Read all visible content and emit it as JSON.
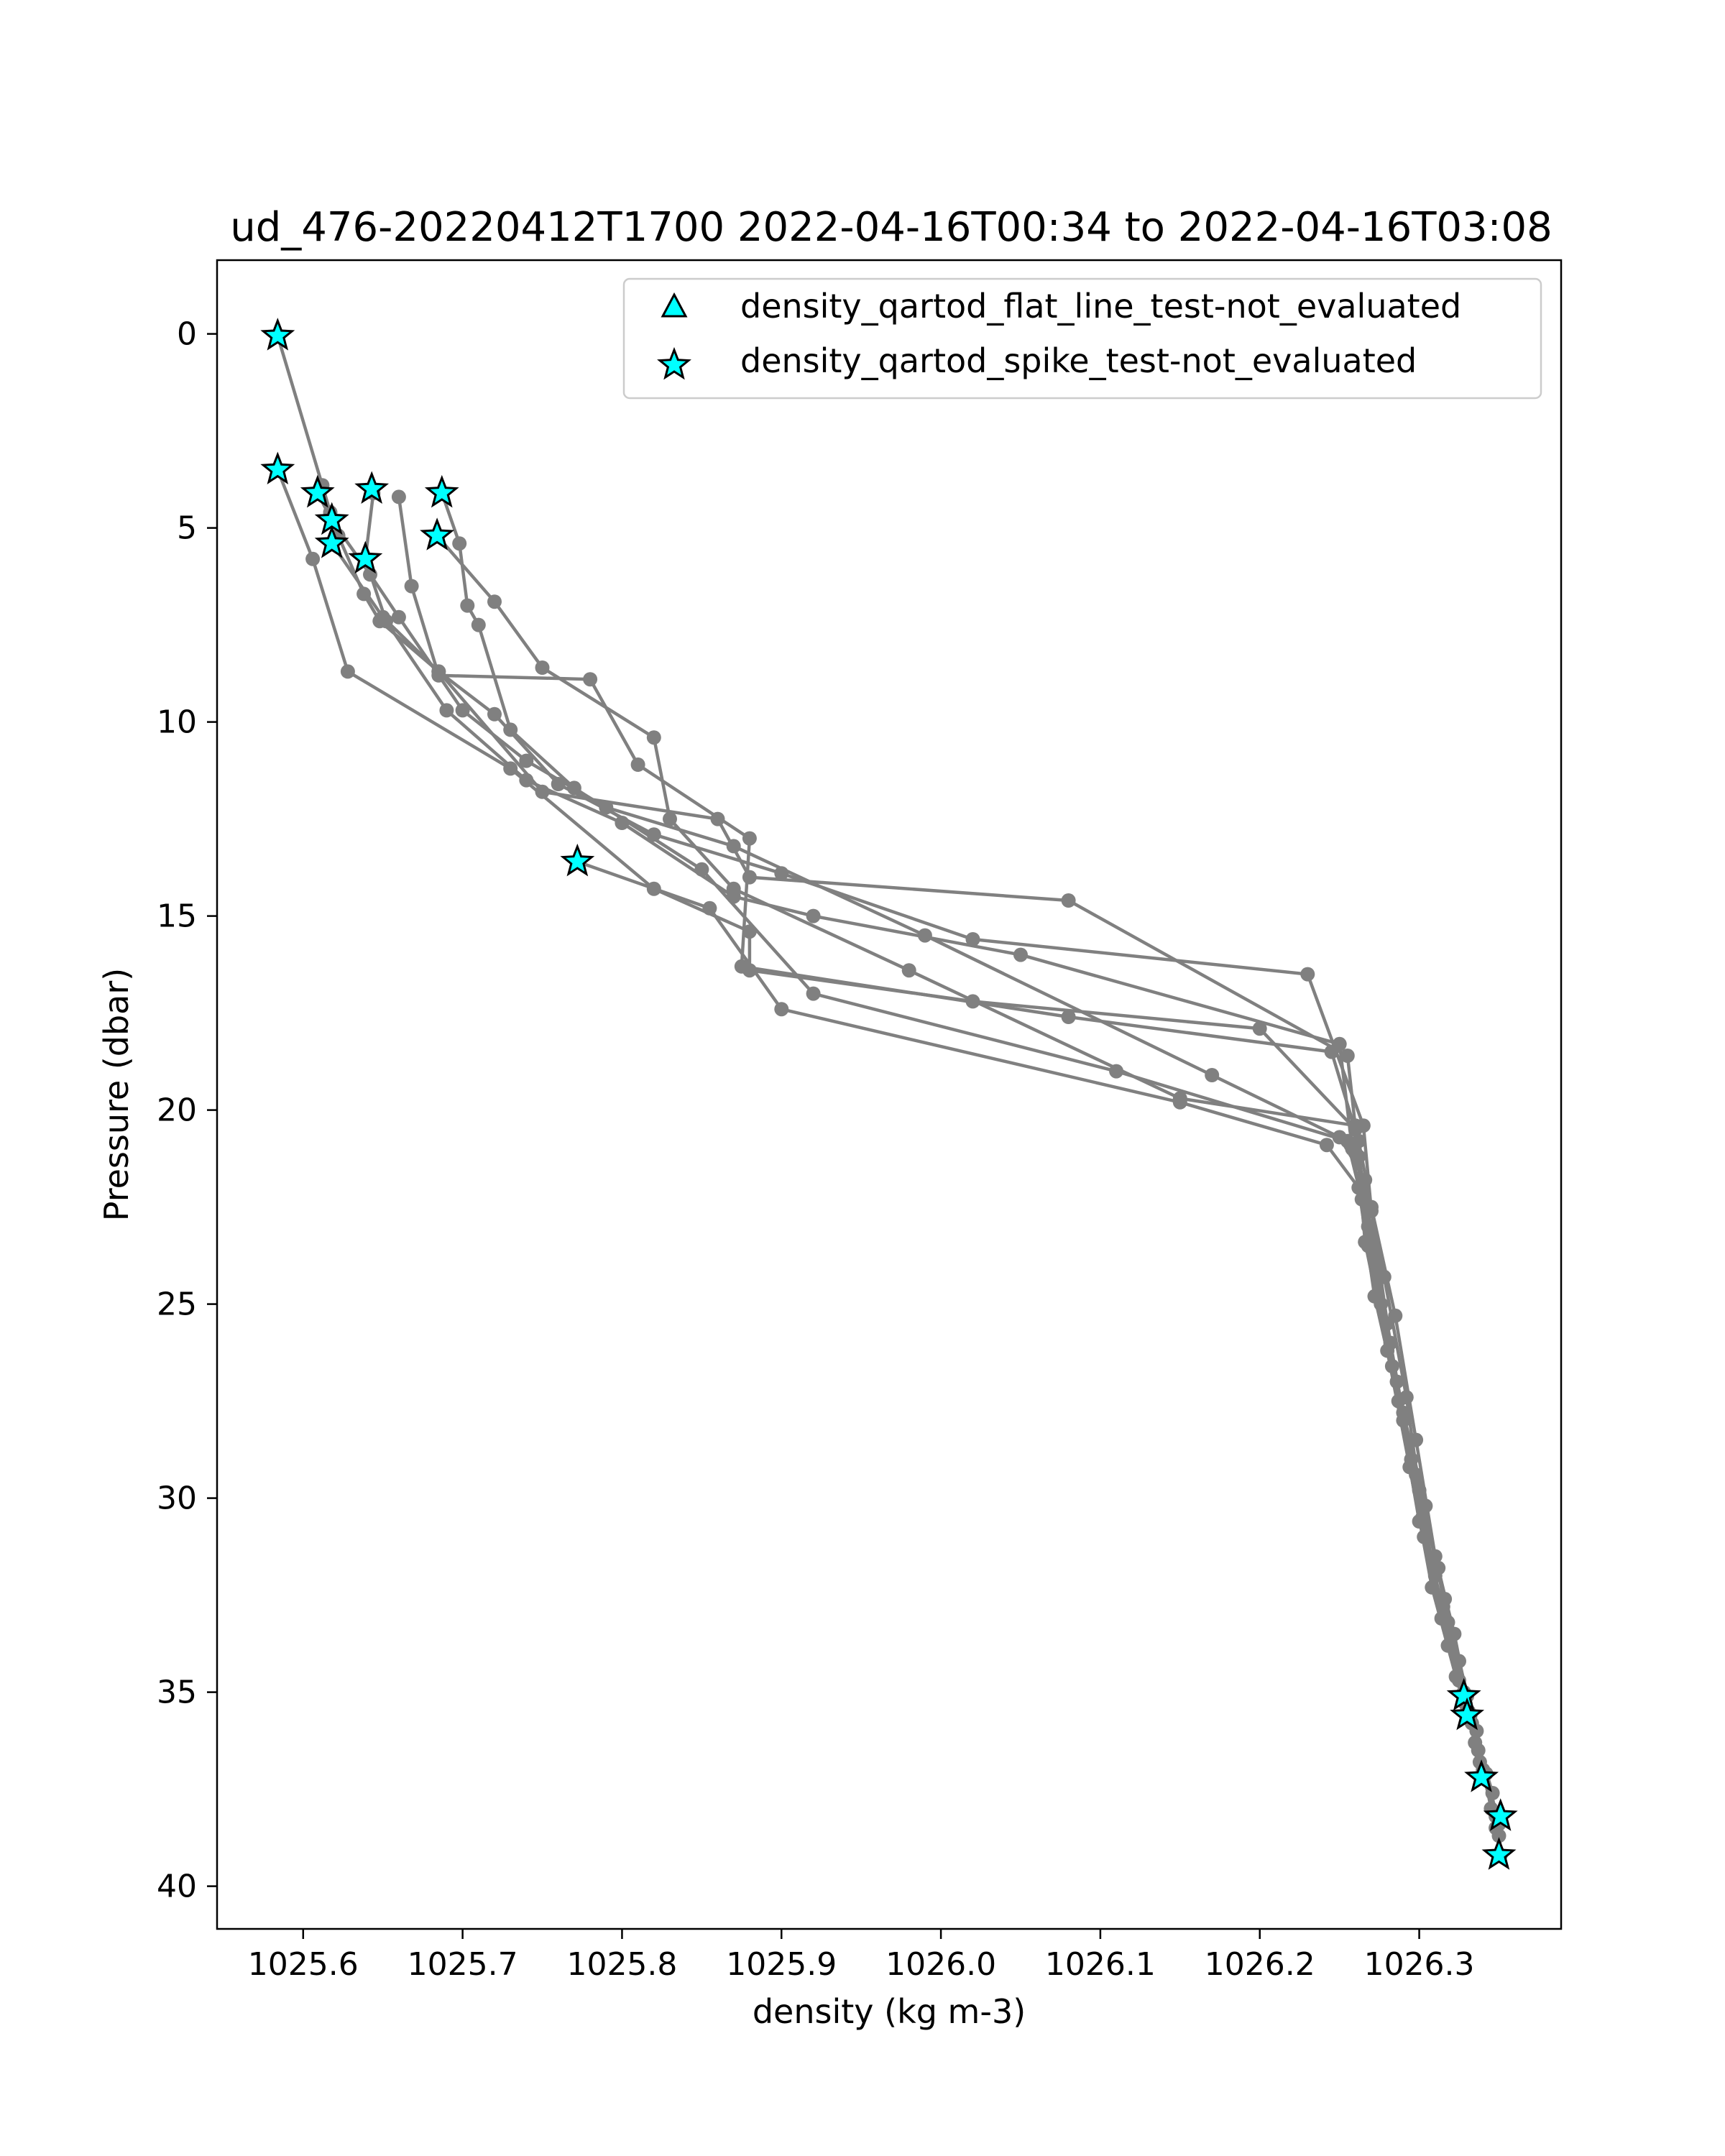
{
  "chart_data": {
    "type": "scatter",
    "title": "ud_476-20220412T1700 2022-04-16T00:34 to 2022-04-16T03:08",
    "xlabel": "density (kg m-3)",
    "ylabel": "Pressure (dbar)",
    "xlim": [
      1025.546,
      1026.389
    ],
    "ylim": [
      41.1,
      -1.9
    ],
    "y_inverted": true,
    "grid": false,
    "x_ticks": [
      {
        "value": 1025.6,
        "label": "1025.6"
      },
      {
        "value": 1025.7,
        "label": "1025.7"
      },
      {
        "value": 1025.8,
        "label": "1025.8"
      },
      {
        "value": 1025.9,
        "label": "1025.9"
      },
      {
        "value": 1026.0,
        "label": "1026.0"
      },
      {
        "value": 1026.1,
        "label": "1026.1"
      },
      {
        "value": 1026.2,
        "label": "1026.2"
      },
      {
        "value": 1026.3,
        "label": "1026.3"
      }
    ],
    "y_ticks": [
      {
        "value": 0,
        "label": "0"
      },
      {
        "value": 5,
        "label": "5"
      },
      {
        "value": 10,
        "label": "10"
      },
      {
        "value": 15,
        "label": "15"
      },
      {
        "value": 20,
        "label": "20"
      },
      {
        "value": 25,
        "label": "25"
      },
      {
        "value": 30,
        "label": "30"
      },
      {
        "value": 35,
        "label": "35"
      },
      {
        "value": 40,
        "label": "40"
      }
    ],
    "profile_color": "#808080",
    "profiles": [
      {
        "points": [
          [
            1025.584,
            0.05
          ],
          [
            1025.612,
            3.9
          ],
          [
            1025.617,
            4.6
          ],
          [
            1025.622,
            5.2
          ],
          [
            1025.638,
            6.7
          ],
          [
            1025.648,
            7.4
          ],
          [
            1025.685,
            8.7
          ],
          [
            1025.72,
            9.8
          ],
          [
            1025.76,
            11.6
          ],
          [
            1025.82,
            12.9
          ],
          [
            1025.9,
            13.9
          ],
          [
            1026.02,
            15.6
          ],
          [
            1026.23,
            16.5
          ],
          [
            1026.265,
            20.4
          ],
          [
            1026.27,
            22.6
          ],
          [
            1026.28,
            25.5
          ],
          [
            1026.29,
            28.0
          ],
          [
            1026.303,
            31.0
          ],
          [
            1026.318,
            33.8
          ],
          [
            1026.332,
            35.6
          ],
          [
            1026.342,
            37.1
          ],
          [
            1026.35,
            38.4
          ],
          [
            1026.351,
            39.2
          ]
        ]
      },
      {
        "points": [
          [
            1025.584,
            3.5
          ],
          [
            1025.606,
            5.8
          ],
          [
            1025.628,
            8.7
          ],
          [
            1025.73,
            11.2
          ],
          [
            1025.82,
            14.3
          ],
          [
            1025.88,
            15.4
          ],
          [
            1025.88,
            16.4
          ],
          [
            1026.02,
            17.2
          ],
          [
            1026.2,
            17.9
          ],
          [
            1026.26,
            20.5
          ],
          [
            1026.268,
            23.0
          ],
          [
            1026.282,
            26.0
          ],
          [
            1026.295,
            29.0
          ],
          [
            1026.31,
            32.0
          ],
          [
            1026.325,
            34.7
          ],
          [
            1026.335,
            36.3
          ],
          [
            1026.348,
            38.2
          ]
        ]
      },
      {
        "points": [
          [
            1025.609,
            4.1
          ],
          [
            1025.618,
            4.8
          ],
          [
            1025.642,
            6.2
          ],
          [
            1025.66,
            7.3
          ],
          [
            1025.7,
            9.7
          ],
          [
            1025.74,
            11.0
          ],
          [
            1025.79,
            12.2
          ],
          [
            1025.87,
            13.2
          ],
          [
            1025.99,
            15.5
          ],
          [
            1026.17,
            19.1
          ],
          [
            1026.25,
            20.7
          ],
          [
            1026.266,
            21.8
          ],
          [
            1026.278,
            24.3
          ],
          [
            1026.292,
            27.4
          ],
          [
            1026.3,
            29.8
          ],
          [
            1026.316,
            32.6
          ],
          [
            1026.33,
            35.1
          ],
          [
            1026.34,
            37.0
          ],
          [
            1026.35,
            38.7
          ]
        ]
      },
      {
        "points": [
          [
            1025.618,
            5.4
          ],
          [
            1025.65,
            7.3
          ],
          [
            1025.685,
            8.7
          ],
          [
            1025.75,
            11.8
          ],
          [
            1025.86,
            12.5
          ],
          [
            1025.88,
            14.0
          ],
          [
            1026.08,
            14.6
          ],
          [
            1026.255,
            18.6
          ],
          [
            1026.262,
            21.2
          ],
          [
            1026.274,
            24.1
          ],
          [
            1026.286,
            27.0
          ],
          [
            1026.302,
            30.5
          ],
          [
            1026.314,
            33.1
          ],
          [
            1026.329,
            35.3
          ],
          [
            1026.338,
            36.8
          ]
        ]
      },
      {
        "points": [
          [
            1025.643,
            4.0
          ],
          [
            1025.644,
            4.1
          ],
          [
            1025.639,
            5.8
          ],
          [
            1025.652,
            7.4
          ],
          [
            1025.69,
            9.7
          ],
          [
            1025.74,
            11.5
          ],
          [
            1025.8,
            12.6
          ],
          [
            1025.87,
            14.5
          ],
          [
            1025.92,
            15.0
          ],
          [
            1026.05,
            16.0
          ],
          [
            1026.25,
            18.3
          ],
          [
            1026.258,
            21.0
          ],
          [
            1026.268,
            23.5
          ],
          [
            1026.283,
            26.6
          ],
          [
            1026.298,
            29.4
          ],
          [
            1026.312,
            31.8
          ],
          [
            1026.325,
            34.2
          ],
          [
            1026.336,
            36.0
          ],
          [
            1026.345,
            38.0
          ]
        ]
      },
      {
        "points": [
          [
            1025.66,
            4.2
          ],
          [
            1025.668,
            6.5
          ],
          [
            1025.685,
            8.8
          ],
          [
            1025.78,
            8.9
          ],
          [
            1025.81,
            11.1
          ],
          [
            1025.88,
            13.0
          ],
          [
            1025.875,
            16.3
          ],
          [
            1026.08,
            17.6
          ],
          [
            1026.245,
            18.5
          ],
          [
            1026.262,
            20.8
          ],
          [
            1026.27,
            22.5
          ],
          [
            1026.285,
            25.3
          ],
          [
            1026.298,
            28.5
          ],
          [
            1026.31,
            31.5
          ],
          [
            1026.322,
            33.5
          ],
          [
            1026.333,
            35.8
          ],
          [
            1026.346,
            37.6
          ]
        ]
      },
      {
        "points": [
          [
            1025.687,
            4.1
          ],
          [
            1025.698,
            5.4
          ],
          [
            1025.703,
            7.0
          ],
          [
            1025.71,
            7.5
          ],
          [
            1025.73,
            10.2
          ],
          [
            1025.77,
            11.7
          ],
          [
            1025.85,
            13.8
          ],
          [
            1025.92,
            17.0
          ],
          [
            1026.11,
            19.0
          ],
          [
            1026.255,
            20.8
          ],
          [
            1026.264,
            22.3
          ],
          [
            1026.276,
            25.0
          ],
          [
            1026.29,
            27.8
          ],
          [
            1026.304,
            30.2
          ],
          [
            1026.318,
            33.2
          ],
          [
            1026.331,
            35.5
          ]
        ]
      },
      {
        "points": [
          [
            1025.684,
            5.2
          ],
          [
            1025.72,
            6.9
          ],
          [
            1025.75,
            8.6
          ],
          [
            1025.82,
            10.4
          ],
          [
            1025.83,
            12.5
          ],
          [
            1025.87,
            14.3
          ],
          [
            1025.98,
            16.4
          ],
          [
            1026.15,
            19.7
          ],
          [
            1026.26,
            20.4
          ],
          [
            1026.266,
            23.4
          ],
          [
            1026.28,
            26.2
          ],
          [
            1026.294,
            29.2
          ],
          [
            1026.308,
            32.3
          ],
          [
            1026.323,
            34.6
          ],
          [
            1026.337,
            36.5
          ],
          [
            1026.348,
            38.5
          ]
        ]
      },
      {
        "points": [
          [
            1025.772,
            13.6
          ],
          [
            1025.855,
            14.8
          ],
          [
            1025.9,
            17.4
          ],
          [
            1026.15,
            19.8
          ],
          [
            1026.242,
            20.9
          ],
          [
            1026.262,
            22.0
          ],
          [
            1026.272,
            24.8
          ],
          [
            1026.287,
            27.5
          ],
          [
            1026.3,
            30.6
          ],
          [
            1026.315,
            32.8
          ],
          [
            1026.328,
            35.0
          ]
        ]
      }
    ],
    "flagged_series": [
      {
        "name": "density_qartod_flat_line_test-not_evaluated",
        "marker": "triangle",
        "color": "#00ffff",
        "points": []
      },
      {
        "name": "density_qartod_spike_test-not_evaluated",
        "marker": "star",
        "color": "#00ffff",
        "points": [
          [
            1025.584,
            0.05
          ],
          [
            1025.584,
            3.5
          ],
          [
            1025.609,
            4.1
          ],
          [
            1025.618,
            4.8
          ],
          [
            1025.618,
            5.4
          ],
          [
            1025.643,
            4.0
          ],
          [
            1025.639,
            5.8
          ],
          [
            1025.687,
            4.1
          ],
          [
            1025.684,
            5.2
          ],
          [
            1025.772,
            13.6
          ],
          [
            1026.328,
            35.1
          ],
          [
            1026.33,
            35.6
          ],
          [
            1026.339,
            37.2
          ],
          [
            1026.351,
            38.2
          ],
          [
            1026.35,
            39.2
          ]
        ]
      }
    ],
    "legend": {
      "placement": "top-right",
      "entries": [
        {
          "label": "density_qartod_flat_line_test-not_evaluated",
          "marker": "triangle"
        },
        {
          "label": "density_qartod_spike_test-not_evaluated",
          "marker": "star"
        }
      ]
    }
  }
}
